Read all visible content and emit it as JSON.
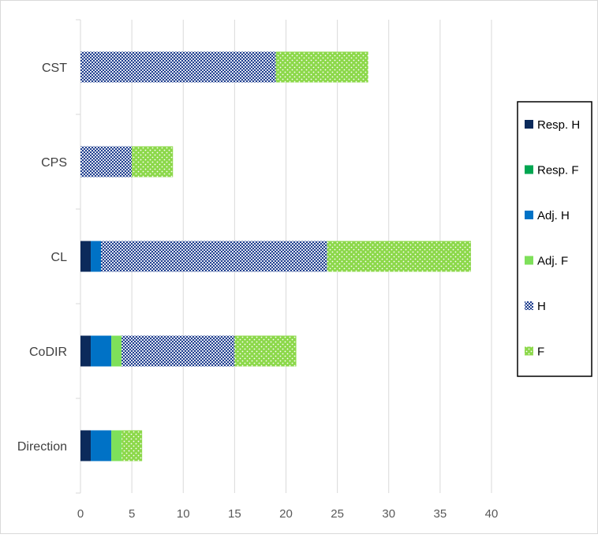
{
  "chart_data": {
    "type": "bar",
    "orientation": "horizontal",
    "stacked": true,
    "categories": [
      "Direction",
      "CoDIR",
      "CL",
      "CPS",
      "CST"
    ],
    "series": [
      {
        "name": "Resp. H",
        "values": [
          1,
          1,
          1,
          0,
          0
        ],
        "color": "#0b2a5b",
        "pattern": "solid"
      },
      {
        "name": "Resp. F",
        "values": [
          0,
          0,
          0,
          0,
          0
        ],
        "color": "#00a651",
        "pattern": "solid"
      },
      {
        "name": "Adj. H",
        "values": [
          2,
          2,
          1,
          0,
          0
        ],
        "color": "#0072c6",
        "pattern": "solid"
      },
      {
        "name": "Adj. F",
        "values": [
          1,
          1,
          0,
          0,
          0
        ],
        "color": "#7ee05a",
        "pattern": "solid"
      },
      {
        "name": "H",
        "values": [
          0,
          11,
          22,
          5,
          19
        ],
        "color": "#1f3f8f",
        "pattern": "checker"
      },
      {
        "name": "F",
        "values": [
          2,
          6,
          14,
          4,
          9
        ],
        "color": "#8cd84a",
        "pattern": "dots"
      }
    ],
    "xlim": [
      0,
      40
    ],
    "xticks": [
      0,
      5,
      10,
      15,
      20,
      25,
      30,
      35,
      40
    ],
    "grid": "vertical",
    "legend_position": "right",
    "title": "",
    "xlabel": "",
    "ylabel": ""
  }
}
